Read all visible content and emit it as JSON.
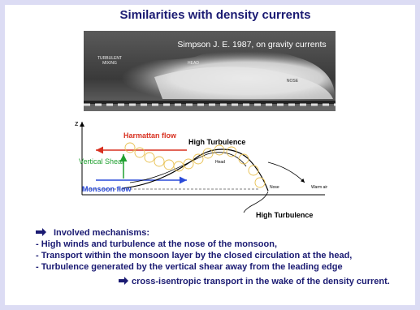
{
  "title": "Similarities with density currents",
  "photo": {
    "caption": "Simpson J. E. 1987, on gravity currents",
    "labels": [
      "TURBULENT",
      "MIXING",
      "HEAD",
      "NOSE"
    ]
  },
  "diagram": {
    "axis_label": "z",
    "harmattan": "Harmattan flow",
    "high_turbulence_top": "High Turbulence",
    "vertical_shear": "Vertical Shear",
    "monsoon": "Monsoon flow",
    "head": "Head",
    "nose": "Nose",
    "warm_air": "Warm air",
    "high_turbulence_bottom": "High Turbulence"
  },
  "body": {
    "heading": "Involved mechanisms:",
    "items": [
      "- High winds and turbulence at the nose of the monsoon,",
      "- Transport within the monsoon layer by the closed circulation at the head,",
      "- Turbulence generated by the vertical shear away from the leading edge"
    ],
    "conclusion": "cross-isentropic transport in the wake of the density current."
  }
}
